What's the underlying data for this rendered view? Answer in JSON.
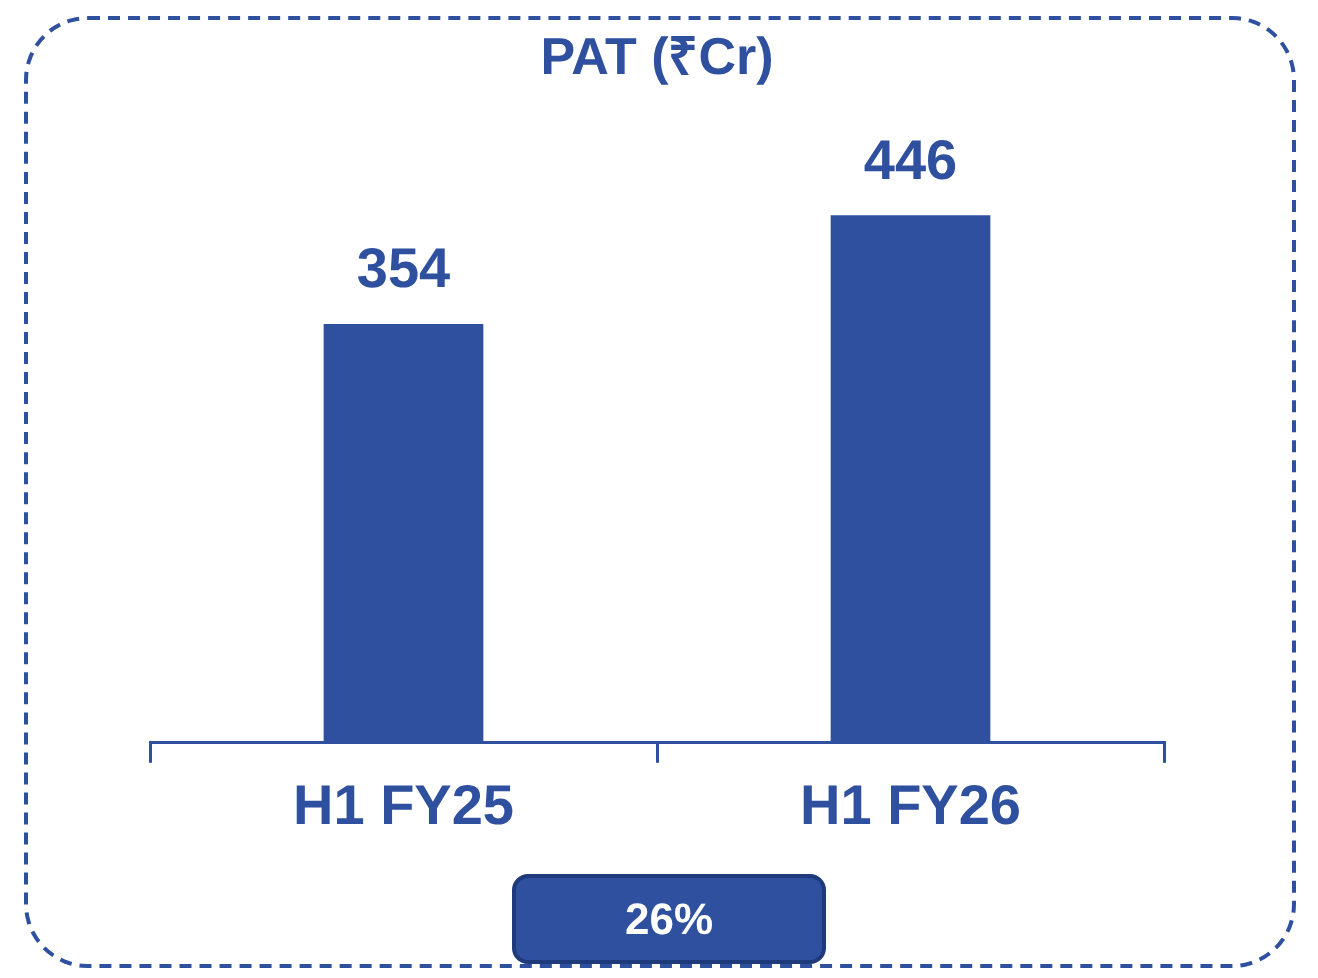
{
  "chart_data": {
    "type": "bar",
    "title": "PAT (₹Cr)",
    "categories": [
      "H1 FY25",
      "H1 FY26"
    ],
    "values": [
      354,
      446
    ],
    "color": "#2e509f",
    "data_labels": true,
    "grid": false,
    "legend": false,
    "tick_labels": "x",
    "annotations": [
      "26%"
    ]
  }
}
